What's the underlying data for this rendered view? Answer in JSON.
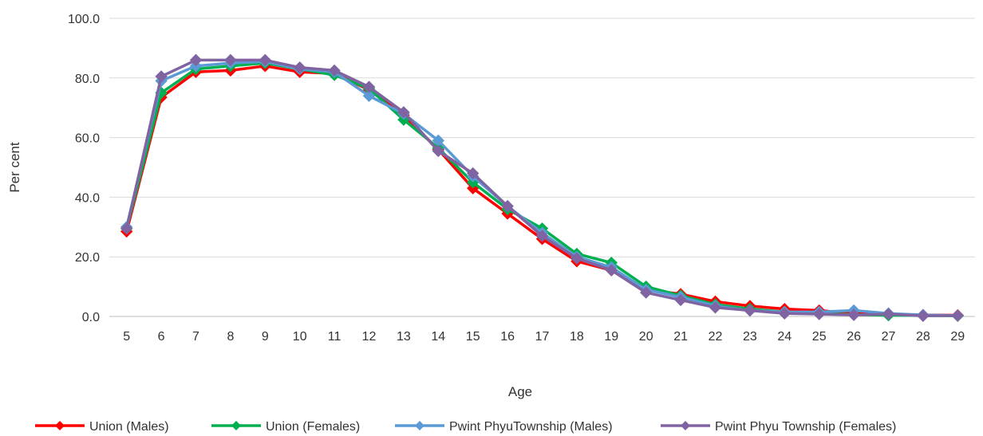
{
  "chart_data": {
    "type": "line",
    "title": "",
    "xlabel": "Age",
    "ylabel": "Per cent",
    "ylim": [
      0,
      100
    ],
    "yticks": [
      "0.0",
      "20.0",
      "40.0",
      "60.0",
      "80.0",
      "100.0"
    ],
    "categories": [
      "5",
      "6",
      "7",
      "8",
      "9",
      "10",
      "11",
      "12",
      "13",
      "14",
      "15",
      "16",
      "17",
      "18",
      "19",
      "20",
      "21",
      "22",
      "23",
      "24",
      "25",
      "26",
      "27",
      "28",
      "29"
    ],
    "grid": true,
    "legend": "bottom",
    "series": [
      {
        "name": "Union (Males)",
        "color": "#ff0000",
        "marker": "diamond",
        "values": [
          28.5,
          73.5,
          82.0,
          82.5,
          84.0,
          82.0,
          81.5,
          76.0,
          67.5,
          56.0,
          43.0,
          34.5,
          26.0,
          18.5,
          15.5,
          9.0,
          7.5,
          5.0,
          3.5,
          2.5,
          2.0,
          1.0,
          0.8,
          0.5,
          0.4
        ]
      },
      {
        "name": "Union (Females)",
        "color": "#00b050",
        "marker": "diamond",
        "values": [
          29.5,
          75.0,
          83.0,
          84.0,
          85.0,
          83.0,
          81.0,
          76.5,
          66.0,
          56.5,
          45.0,
          36.0,
          29.5,
          21.0,
          18.0,
          10.0,
          7.0,
          4.0,
          2.5,
          1.5,
          1.0,
          0.6,
          0.4,
          0.3,
          0.2
        ]
      },
      {
        "name": "Pwint PhyuTownship (Males)",
        "color": "#5b9bd5",
        "marker": "diamond",
        "values": [
          30.0,
          79.0,
          84.0,
          85.0,
          85.5,
          83.0,
          82.0,
          74.0,
          68.0,
          59.0,
          47.0,
          37.0,
          28.0,
          20.0,
          16.5,
          9.0,
          6.5,
          3.5,
          2.0,
          1.5,
          1.5,
          2.0,
          1.0,
          0.5,
          0.3
        ]
      },
      {
        "name": "Pwint Phyu Township (Females)",
        "color": "#8064a2",
        "marker": "diamond",
        "values": [
          29.5,
          80.5,
          86.0,
          86.0,
          86.0,
          83.5,
          82.5,
          77.0,
          68.5,
          55.5,
          48.0,
          37.0,
          27.0,
          19.5,
          15.5,
          8.0,
          5.5,
          3.0,
          2.0,
          1.0,
          0.8,
          0.5,
          0.8,
          0.2,
          0.3
        ]
      }
    ]
  }
}
